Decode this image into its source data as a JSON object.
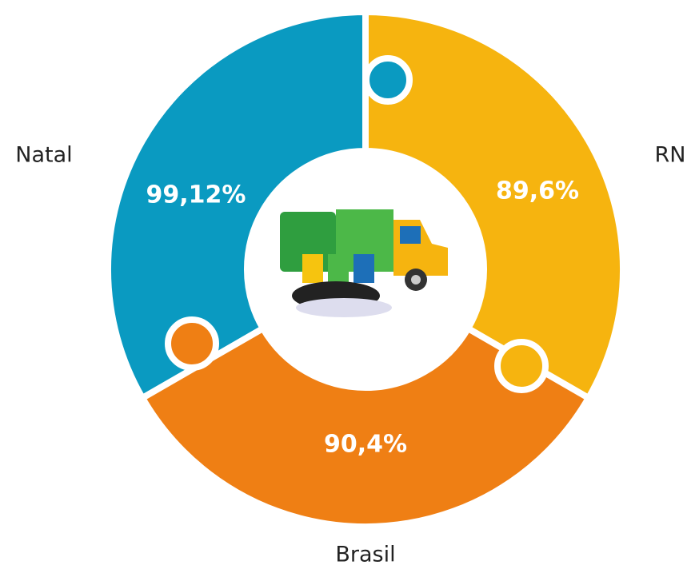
{
  "segments": [
    {
      "name": "Natal",
      "label": "99,12%"
    },
    {
      "name": "RN",
      "label": "89,6%"
    },
    {
      "name": "Brasil",
      "label": "90,4%"
    }
  ]
}
